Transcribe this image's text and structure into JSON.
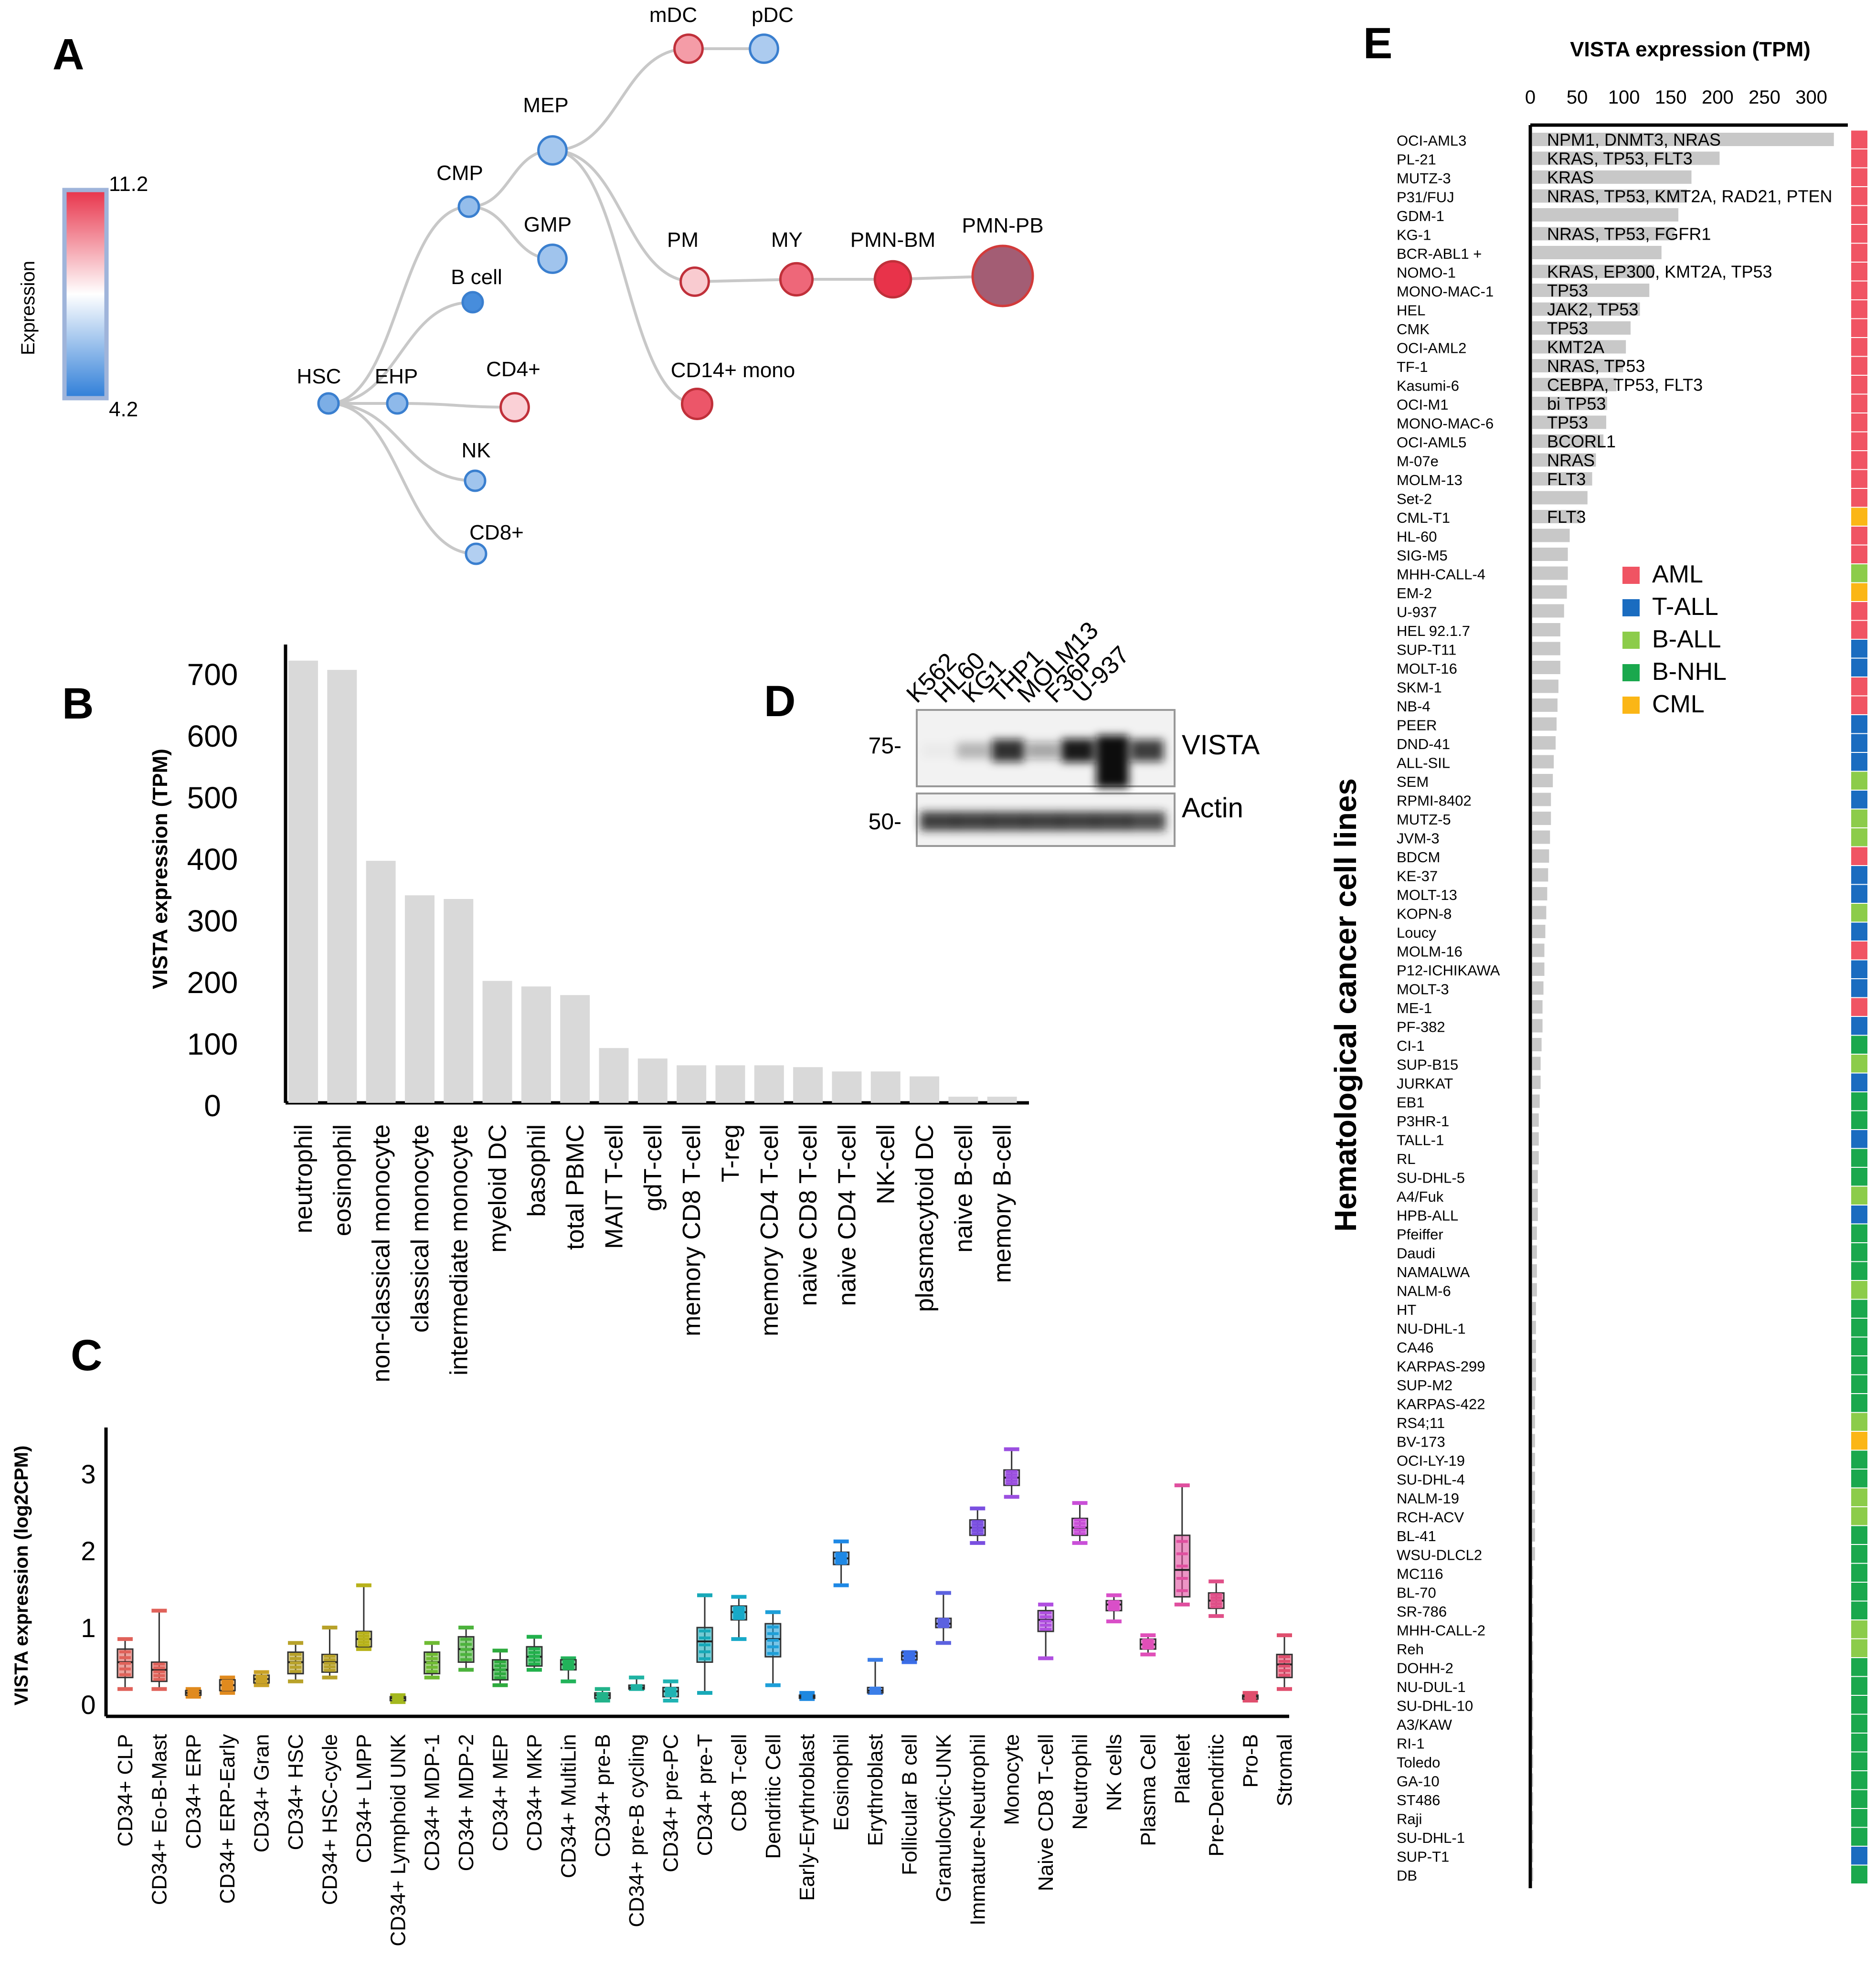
{
  "panels": [
    "A",
    "B",
    "C",
    "D",
    "E"
  ],
  "colors": {
    "bar": "#d9d9d9",
    "barE": "#c8c8c8",
    "edge": "#c8c8c8",
    "axis": "#000000"
  },
  "panelA": {
    "colorbar": {
      "title": "Expression",
      "max": "11.2",
      "min": "4.2",
      "vmin": 4.2,
      "vmax": 11.2,
      "colors": [
        "#e8334a",
        "#ffffff",
        "#2f7ed8"
      ]
    },
    "nodes": [
      {
        "id": "HSC",
        "label": "HSC",
        "value": 5.5,
        "size": 1
      },
      {
        "id": "EHP",
        "label": "EHP",
        "value": 5.8,
        "size": 1
      },
      {
        "id": "CMP",
        "label": "CMP",
        "value": 5.9,
        "size": 1
      },
      {
        "id": "MEP",
        "label": "MEP",
        "value": 6.2,
        "size": 1.4
      },
      {
        "id": "GMP",
        "label": "GMP",
        "value": 6.1,
        "size": 1.4
      },
      {
        "id": "mDC",
        "label": "mDC",
        "value": 9.4,
        "size": 1.4
      },
      {
        "id": "pDC",
        "label": "pDC",
        "value": 6.3,
        "size": 1.4
      },
      {
        "id": "Bcell",
        "label": "B cell",
        "value": 4.6,
        "size": 1
      },
      {
        "id": "CD4",
        "label": "CD4+",
        "value": 8.5,
        "size": 1.4
      },
      {
        "id": "NK",
        "label": "NK",
        "value": 6.1,
        "size": 1
      },
      {
        "id": "CD8",
        "label": "CD8+",
        "value": 6.4,
        "size": 1
      },
      {
        "id": "PM",
        "label": "PM",
        "value": 8.6,
        "size": 1.4
      },
      {
        "id": "MY",
        "label": "MY",
        "value": 10.3,
        "size": 1.6
      },
      {
        "id": "PMNBM",
        "label": "PMN-BM",
        "value": 11.2,
        "size": 1.8
      },
      {
        "id": "PMNPB",
        "label": "PMN-PB",
        "value": 11.0,
        "size": 3
      },
      {
        "id": "CD14",
        "label": "CD14+ mono",
        "value": 10.6,
        "size": 1.5
      }
    ],
    "edges": [
      [
        "HSC",
        "CMP"
      ],
      [
        "HSC",
        "Bcell"
      ],
      [
        "HSC",
        "EHP"
      ],
      [
        "HSC",
        "NK"
      ],
      [
        "HSC",
        "CD8"
      ],
      [
        "EHP",
        "CD4"
      ],
      [
        "CMP",
        "MEP"
      ],
      [
        "CMP",
        "GMP"
      ],
      [
        "MEP",
        "mDC"
      ],
      [
        "mDC",
        "pDC"
      ],
      [
        "MEP",
        "PM"
      ],
      [
        "PM",
        "MY"
      ],
      [
        "MY",
        "PMNBM"
      ],
      [
        "PMNBM",
        "PMNPB"
      ],
      [
        "MEP",
        "CD14"
      ]
    ]
  },
  "panelD": {
    "cell_lines": [
      "K562",
      "HL60",
      "KG1",
      "THP1",
      "MOLM13",
      "F36P",
      "U-937"
    ],
    "markers": [
      "75-",
      "50-"
    ],
    "bands": [
      "VISTA",
      "Actin"
    ],
    "vista_intensity": [
      0.03,
      0.25,
      0.85,
      0.35,
      0.95,
      1.0,
      0.8
    ],
    "actin_intensity": [
      0.85,
      0.85,
      0.85,
      0.85,
      0.85,
      0.85,
      0.8
    ]
  },
  "chart_data": [
    {
      "panel": "B",
      "type": "bar",
      "ylabel": "VISTA expression (TPM)",
      "ylim": [
        0,
        700
      ],
      "yticks": [
        0,
        100,
        200,
        300,
        400,
        500,
        600,
        700
      ],
      "categories": [
        "neutrophil",
        "eosinophil",
        "non-classical monocyte",
        "classical monocyte",
        "intermediate monocyte",
        "myeloid DC",
        "basophil",
        "total PBMC",
        "MAIT T-cell",
        "gdT-cell",
        "memory CD8 T-cell",
        "T-reg",
        "memory CD4 T-cell",
        "naive CD8 T-cell",
        "naive CD4 T-cell",
        "NK-cell",
        "plasmacytoid DC",
        "naive B-cell",
        "memory B-cell"
      ],
      "values": [
        718,
        703,
        393,
        337,
        331,
        198,
        189,
        175,
        89,
        72,
        61,
        61,
        61,
        58,
        51,
        51,
        43,
        10,
        10
      ]
    },
    {
      "panel": "C",
      "type": "box",
      "ylabel": "VISTA expression (log2CPM)",
      "ylim": [
        -0.2,
        3.5
      ],
      "yticks": [
        0,
        1,
        2,
        3
      ],
      "categories": [
        "CD34+ CLP",
        "CD34+ Eo-B-Mast",
        "CD34+ ERP",
        "CD34+ ERP-Early",
        "CD34+ Gran",
        "CD34+ HSC",
        "CD34+ HSC-cycle",
        "CD34+ LMPP",
        "CD34+ Lymphoid UNK",
        "CD34+ MDP-1",
        "CD34+ MDP-2",
        "CD34+ MEP",
        "CD34+ MKP",
        "CD34+ MultiLin",
        "CD34+ pre-B",
        "CD34+ pre-B cycling",
        "CD34+ pre-PC",
        "CD34+ pre-T",
        "CD8 T-cell",
        "Dendritic Cell",
        "Early-Erythroblast",
        "Eosinophil",
        "Erythroblast",
        "Follicular B cell",
        "Granulocytic-UNK",
        "Immature-Neutrophil",
        "Monocyte",
        "Naive CD8 T-cell",
        "Neutrophil",
        "NK cells",
        "Plasma Cell",
        "Platelet",
        "Pre-Dendritic",
        "Pro-B",
        "Stromal"
      ],
      "box_colors": [
        "#e0625a",
        "#e0625a",
        "#e08a1e",
        "#e08a1e",
        "#c9a227",
        "#b8a22a",
        "#b8a22a",
        "#b8b21a",
        "#a4b81e",
        "#6fbb33",
        "#4db33d",
        "#2eaa3e",
        "#22b14c",
        "#22b35a",
        "#22b38a",
        "#1fb3a3",
        "#1fb3b3",
        "#17a9b8",
        "#17a9c8",
        "#1e9fd8",
        "#1e88e0",
        "#1e88e5",
        "#3b7ee8",
        "#3b6ee8",
        "#5c62e0",
        "#7a4fe0",
        "#9b4fe0",
        "#b04fe0",
        "#c94fd8",
        "#d94fc8",
        "#e04fb8",
        "#e04f9f",
        "#e04f88",
        "#e04f6e",
        "#e04f6e"
      ],
      "medians": [
        0.55,
        0.45,
        0.15,
        0.25,
        0.33,
        0.55,
        0.55,
        0.85,
        0.08,
        0.55,
        0.72,
        0.45,
        0.62,
        0.52,
        0.12,
        0.22,
        0.17,
        0.82,
        1.2,
        0.85,
        0.1,
        1.9,
        0.18,
        0.63,
        1.05,
        2.3,
        2.95,
        1.1,
        2.3,
        1.3,
        0.78,
        1.75,
        1.35,
        0.1,
        0.52
      ],
      "q1": [
        0.35,
        0.3,
        0.12,
        0.18,
        0.28,
        0.4,
        0.42,
        0.75,
        0.05,
        0.4,
        0.55,
        0.32,
        0.5,
        0.45,
        0.08,
        0.2,
        0.1,
        0.55,
        1.1,
        0.62,
        0.08,
        1.82,
        0.15,
        0.58,
        1.0,
        2.2,
        2.85,
        0.95,
        2.2,
        1.22,
        0.72,
        1.4,
        1.25,
        0.07,
        0.35
      ],
      "q3": [
        0.72,
        0.55,
        0.18,
        0.32,
        0.38,
        0.68,
        0.65,
        0.95,
        0.1,
        0.68,
        0.88,
        0.58,
        0.75,
        0.58,
        0.15,
        0.25,
        0.22,
        1.0,
        1.28,
        1.05,
        0.12,
        1.98,
        0.22,
        0.68,
        1.12,
        2.4,
        3.05,
        1.22,
        2.42,
        1.35,
        0.85,
        2.2,
        1.45,
        0.12,
        0.65
      ],
      "whisker_lo": [
        0.2,
        0.2,
        0.1,
        0.15,
        0.25,
        0.3,
        0.35,
        0.72,
        0.03,
        0.35,
        0.45,
        0.25,
        0.45,
        0.3,
        0.05,
        0.2,
        0.05,
        0.15,
        0.85,
        0.25,
        0.07,
        1.55,
        0.15,
        0.55,
        0.8,
        2.1,
        2.7,
        0.6,
        2.1,
        1.08,
        0.65,
        1.3,
        1.15,
        0.05,
        0.2
      ],
      "whisker_hi": [
        0.85,
        1.22,
        0.2,
        0.35,
        0.42,
        0.8,
        1.0,
        1.55,
        0.12,
        0.8,
        1.0,
        0.7,
        0.88,
        0.6,
        0.2,
        0.35,
        0.3,
        1.42,
        1.4,
        1.2,
        0.15,
        2.12,
        0.58,
        0.68,
        1.45,
        2.55,
        3.32,
        1.3,
        2.62,
        1.42,
        0.9,
        2.85,
        1.6,
        0.15,
        0.9
      ]
    },
    {
      "panel": "E",
      "type": "bar",
      "title": "VISTA expression (TPM)",
      "ylabel": "Hematological cancer cell lines",
      "xlim": [
        0,
        330
      ],
      "xticks": [
        0,
        50,
        100,
        150,
        200,
        250,
        300
      ],
      "legend": [
        {
          "label": "AML",
          "color": "#f05463"
        },
        {
          "label": "T-ALL",
          "color": "#1a6cc0"
        },
        {
          "label": "B-ALL",
          "color": "#8ccc4a"
        },
        {
          "label": "B-NHL",
          "color": "#1aa84d"
        },
        {
          "label": "CML",
          "color": "#fbb616"
        }
      ],
      "categories": [
        "OCI-AML3",
        "PL-21",
        "MUTZ-3",
        "P31/FUJ",
        "GDM-1",
        "KG-1",
        "BCR-ABL1 +",
        "NOMO-1",
        "MONO-MAC-1",
        "HEL",
        "CMK",
        "OCI-AML2",
        "TF-1",
        "Kasumi-6",
        "OCI-M1",
        "MONO-MAC-6",
        "OCI-AML5",
        "M-07e",
        "MOLM-13",
        "Set-2",
        "CML-T1",
        "HL-60",
        "SIG-M5",
        "MHH-CALL-4",
        "EM-2",
        "U-937",
        "HEL 92.1.7",
        "SUP-T11",
        "MOLT-16",
        "SKM-1",
        "NB-4",
        "PEER",
        "DND-41",
        "ALL-SIL",
        "SEM",
        "RPMI-8402",
        "MUTZ-5",
        "JVM-3",
        "BDCM",
        "KE-37",
        "MOLT-13",
        "KOPN-8",
        "Loucy",
        "MOLM-16",
        "P12-ICHIKAWA",
        "MOLT-3",
        "ME-1",
        "PF-382",
        "CI-1",
        "SUP-B15",
        "JURKAT",
        "EB1",
        "P3HR-1",
        "TALL-1",
        "RL",
        "SU-DHL-5",
        "A4/Fuk",
        "HPB-ALL",
        "Pfeiffer",
        "Daudi",
        "NAMALWA",
        "NALM-6",
        "HT",
        "NU-DHL-1",
        "CA46",
        "KARPAS-299",
        "SUP-M2",
        "KARPAS-422",
        "RS4;11",
        "BV-173",
        "OCI-LY-19",
        "SU-DHL-4",
        "NALM-19",
        "RCH-ACV",
        "BL-41",
        "WSU-DLCL2",
        "MC116",
        "BL-70",
        "SR-786",
        "MHH-CALL-2",
        "Reh",
        "DOHH-2",
        "NU-DUL-1",
        "SU-DHL-10",
        "A3/KAW",
        "RI-1",
        "Toledo",
        "GA-10",
        "ST486",
        "Raji",
        "SU-DHL-1",
        "SUP-T1",
        "DB"
      ],
      "values": [
        322,
        200,
        170,
        165,
        156,
        152,
        138,
        130,
        125,
        115,
        105,
        100,
        97,
        90,
        80,
        79,
        76,
        68,
        64,
        59,
        52,
        40,
        38,
        38,
        37,
        34,
        30,
        30,
        30,
        28,
        27,
        26,
        25,
        23,
        22,
        20,
        20,
        19,
        18,
        17,
        16,
        15,
        14,
        13,
        13,
        12,
        11,
        11,
        10,
        9,
        9,
        8,
        7,
        7,
        7,
        6,
        6,
        6,
        5,
        5,
        5,
        5,
        4,
        4,
        4,
        4,
        4,
        3,
        3,
        3,
        3,
        3,
        3,
        3,
        3,
        3,
        1,
        1,
        1,
        1,
        1,
        1,
        1,
        1,
        1,
        1,
        1,
        1,
        1,
        1,
        1,
        1,
        1
      ],
      "types": [
        "AML",
        "AML",
        "AML",
        "AML",
        "AML",
        "AML",
        "AML",
        "AML",
        "AML",
        "AML",
        "AML",
        "AML",
        "AML",
        "AML",
        "AML",
        "AML",
        "AML",
        "AML",
        "AML",
        "AML",
        "CML",
        "AML",
        "AML",
        "B-ALL",
        "CML",
        "AML",
        "AML",
        "T-ALL",
        "T-ALL",
        "AML",
        "AML",
        "T-ALL",
        "T-ALL",
        "T-ALL",
        "B-ALL",
        "T-ALL",
        "B-ALL",
        "B-ALL",
        "AML",
        "T-ALL",
        "T-ALL",
        "B-ALL",
        "T-ALL",
        "AML",
        "T-ALL",
        "T-ALL",
        "AML",
        "T-ALL",
        "B-NHL",
        "B-ALL",
        "T-ALL",
        "B-NHL",
        "B-NHL",
        "T-ALL",
        "B-NHL",
        "B-NHL",
        "B-ALL",
        "T-ALL",
        "B-NHL",
        "B-NHL",
        "B-NHL",
        "B-ALL",
        "B-NHL",
        "B-NHL",
        "B-NHL",
        "B-NHL",
        "B-NHL",
        "B-NHL",
        "B-ALL",
        "CML",
        "B-NHL",
        "B-NHL",
        "B-ALL",
        "B-ALL",
        "B-NHL",
        "B-NHL",
        "B-NHL",
        "B-NHL",
        "B-NHL",
        "B-ALL",
        "B-ALL",
        "B-NHL",
        "B-NHL",
        "B-NHL",
        "B-NHL",
        "B-NHL",
        "B-NHL",
        "B-NHL",
        "B-NHL",
        "B-NHL",
        "B-NHL",
        "T-ALL",
        "B-NHL"
      ],
      "annotations": [
        "NPM1, DNMT3, NRAS",
        "KRAS, TP53, FLT3",
        "KRAS",
        "NRAS, TP53, KMT2A, RAD21, PTEN",
        "",
        "NRAS, TP53, FGFR1",
        "",
        "KRAS, EP300, KMT2A, TP53",
        "TP53",
        "JAK2, TP53",
        "TP53",
        "KMT2A",
        "NRAS, TP53",
        "CEBPA, TP53, FLT3",
        "bi TP53",
        "TP53",
        "BCORL1",
        "NRAS",
        "FLT3",
        "",
        "FLT3"
      ]
    }
  ]
}
